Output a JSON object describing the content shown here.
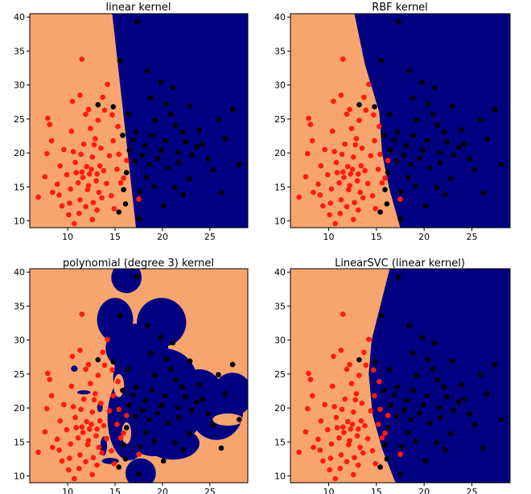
{
  "colors": {
    "region_class0": "#f7a46f",
    "region_class1": "#000080",
    "point_class0": "#ff1a0a",
    "point_class1": "#000000",
    "axes_frame": "#000000",
    "background": "#ffffff"
  },
  "chart_data": [
    {
      "type": "scatter",
      "title": "linear kernel",
      "xlim": [
        6,
        29
      ],
      "ylim": [
        9,
        40.5
      ],
      "xticks": [
        10,
        15,
        20,
        25
      ],
      "yticks": [
        10,
        15,
        20,
        25,
        30,
        35,
        40
      ],
      "grid": false,
      "boundary": [
        [
          14.7,
          40.5
        ],
        [
          17.2,
          9
        ]
      ],
      "series_notes": "two classes: red points left (around x=12, y=18), black points right (around x=19, y=21)"
    },
    {
      "type": "scatter",
      "title": "RBF kernel",
      "xlim": [
        6,
        29
      ],
      "ylim": [
        9,
        40.5
      ],
      "xticks": [
        10,
        15,
        20,
        25
      ],
      "yticks": [
        10,
        15,
        20,
        25,
        30,
        35,
        40
      ],
      "grid": false,
      "boundary": [
        [
          12.7,
          40.5
        ],
        [
          13.8,
          33
        ],
        [
          15.3,
          26
        ],
        [
          15.6,
          20
        ],
        [
          16.3,
          15
        ],
        [
          17.5,
          9
        ]
      ]
    },
    {
      "type": "scatter",
      "title": "polynomial (degree 3) kernel",
      "xlim": [
        6,
        29
      ],
      "ylim": [
        9,
        40.5
      ],
      "xticks": [
        10,
        15,
        20,
        25
      ],
      "yticks": [
        10,
        15,
        20,
        25,
        30,
        35,
        40
      ],
      "grid": false,
      "boundary": null
    },
    {
      "type": "scatter",
      "title": "LinearSVC (linear kernel)",
      "xlim": [
        6,
        29
      ],
      "ylim": [
        9,
        40.5
      ],
      "xticks": [
        10,
        15,
        20,
        25
      ],
      "yticks": [
        10,
        15,
        20,
        25,
        30,
        35,
        40
      ],
      "grid": false,
      "boundary": [
        [
          16.4,
          40.5
        ],
        [
          14.5,
          30
        ],
        [
          14.2,
          25
        ],
        [
          14.6,
          19
        ],
        [
          15.6,
          14
        ],
        [
          17.0,
          9
        ]
      ]
    }
  ],
  "points_class0": [
    [
      12,
      18
    ],
    [
      12.3,
      16.9
    ],
    [
      11.5,
      17.2
    ],
    [
      13,
      15.9
    ],
    [
      10.8,
      18.6
    ],
    [
      12.6,
      19.4
    ],
    [
      13.4,
      18.1
    ],
    [
      11.1,
      15.6
    ],
    [
      9.9,
      16.8
    ],
    [
      12.1,
      14.6
    ],
    [
      13.8,
      17.4
    ],
    [
      10.6,
      20.2
    ],
    [
      14.1,
      15.5
    ],
    [
      11.7,
      21.3
    ],
    [
      12.9,
      22.1
    ],
    [
      9.2,
      18.1
    ],
    [
      8.9,
      15.4
    ],
    [
      13.6,
      13.4
    ],
    [
      11.3,
      13.1
    ],
    [
      10.2,
      12.6
    ],
    [
      14.4,
      19.6
    ],
    [
      12.4,
      23.6
    ],
    [
      13.2,
      24.8
    ],
    [
      11.9,
      25.7
    ],
    [
      10.4,
      23.2
    ],
    [
      8.3,
      21.8
    ],
    [
      9.6,
      20.5
    ],
    [
      14.8,
      21.8
    ],
    [
      15.2,
      17.6
    ],
    [
      14.6,
      13.7
    ],
    [
      13.1,
      11.6
    ],
    [
      11.2,
      11.1
    ],
    [
      10.1,
      10.9
    ],
    [
      12.6,
      10.2
    ],
    [
      9.4,
      12.2
    ],
    [
      8.4,
      14.2
    ],
    [
      7.6,
      16.5
    ],
    [
      7.8,
      19.9
    ],
    [
      7.9,
      25.1
    ],
    [
      8.1,
      24.2
    ],
    [
      10.5,
      27.6
    ],
    [
      11.3,
      28.5
    ],
    [
      12.2,
      26.4
    ],
    [
      13.7,
      28.2
    ],
    [
      14.2,
      30.1
    ],
    [
      11.5,
      33.8
    ],
    [
      15.3,
      23.9
    ],
    [
      14.7,
      25.6
    ],
    [
      13.9,
      26.3
    ],
    [
      15.4,
      19.8
    ],
    [
      16.2,
      18.9
    ],
    [
      17.5,
      13.2
    ],
    [
      15.6,
      15.6
    ],
    [
      13.5,
      20.7
    ],
    [
      12.8,
      21.2
    ],
    [
      11.4,
      19.8
    ],
    [
      10.9,
      17.1
    ],
    [
      12.5,
      17.6
    ],
    [
      11.6,
      16.4
    ],
    [
      13.1,
      16.9
    ],
    [
      12.2,
      15.2
    ],
    [
      10.3,
      14.7
    ],
    [
      9.1,
      13.8
    ],
    [
      6.9,
      13.5
    ],
    [
      10.7,
      9.6
    ],
    [
      14.9,
      11.8
    ],
    [
      15.9,
      16.3
    ],
    [
      12.7,
      12.7
    ],
    [
      11.9,
      12.1
    ],
    [
      13.3,
      14.2
    ]
  ],
  "points_class1": [
    [
      17.3,
      39.3
    ],
    [
      15.5,
      33.6
    ],
    [
      18.4,
      32.1
    ],
    [
      19.8,
      30.4
    ],
    [
      21.1,
      29.6
    ],
    [
      18.8,
      28.1
    ],
    [
      20.4,
      27.2
    ],
    [
      22.9,
      26.9
    ],
    [
      16.4,
      25.7
    ],
    [
      19.2,
      24.8
    ],
    [
      21.4,
      24.1
    ],
    [
      17.2,
      23.1
    ],
    [
      18.9,
      22.6
    ],
    [
      20.3,
      21.8
    ],
    [
      22.4,
      21.6
    ],
    [
      23.6,
      20.9
    ],
    [
      16.5,
      20.4
    ],
    [
      17.9,
      19.7
    ],
    [
      19.5,
      19.2
    ],
    [
      21.7,
      18.6
    ],
    [
      24.8,
      19.1
    ],
    [
      26.6,
      22.1
    ],
    [
      28.1,
      18.3
    ],
    [
      25.3,
      17.5
    ],
    [
      16.2,
      17.1
    ],
    [
      18.3,
      16.4
    ],
    [
      20.6,
      17.8
    ],
    [
      22.8,
      16.2
    ],
    [
      19.1,
      15.1
    ],
    [
      17.6,
      14.3
    ],
    [
      21.3,
      14.9
    ],
    [
      16.1,
      12.5
    ],
    [
      17.5,
      10.3
    ],
    [
      15.4,
      11.3
    ],
    [
      13.2,
      27.1
    ],
    [
      14.8,
      26.8
    ],
    [
      15.8,
      22.6
    ],
    [
      23.9,
      23.4
    ],
    [
      25.9,
      24.9
    ],
    [
      27.4,
      26.4
    ],
    [
      20.9,
      25.7
    ],
    [
      22.1,
      23.1
    ],
    [
      18.2,
      21.1
    ],
    [
      19.9,
      20.4
    ],
    [
      16.9,
      21.9
    ],
    [
      21.6,
      20.1
    ],
    [
      23.1,
      19.7
    ],
    [
      24.2,
      21.3
    ],
    [
      18.6,
      18.3
    ],
    [
      17.1,
      18.8
    ],
    [
      22.2,
      13.9
    ],
    [
      26.2,
      14.1
    ],
    [
      20.1,
      12.2
    ],
    [
      15.9,
      14.6
    ]
  ],
  "poly_blobs_class1": [
    [
      16.2,
      39.2,
      1.6,
      2.3
    ],
    [
      15,
      33,
      1.9,
      3.2
    ],
    [
      19.9,
      32.6,
      2.6,
      3.6
    ],
    [
      17.3,
      28.8,
      3.3,
      3.6
    ],
    [
      20,
      24.3,
      3.6,
      4.5
    ],
    [
      17.2,
      24.6,
      2.4,
      4.2
    ],
    [
      16.5,
      18.6,
      2.3,
      6.3
    ],
    [
      19,
      18.5,
      3.4,
      5.6
    ],
    [
      21.3,
      20.2,
      3.2,
      5.1
    ],
    [
      23.9,
      21.3,
      2.7,
      4.4
    ],
    [
      25.7,
      19.5,
      2.8,
      4.2
    ],
    [
      27.4,
      22,
      2.1,
      3.2
    ],
    [
      21.1,
      14.8,
      2.8,
      2.4
    ],
    [
      17.7,
      10.4,
      1.6,
      2.2
    ]
  ],
  "poly_blobs_class0": [
    [
      15.4,
      23.3,
      0.55,
      1.7
    ],
    [
      16.2,
      16.3,
      0.5,
      1.6
    ],
    [
      26.9,
      18.3,
      1.6,
      0.9
    ]
  ],
  "poly_small_class1": [
    [
      14.5,
      12.2,
      0.9,
      0.45
    ],
    [
      10.7,
      25.8,
      0.35,
      0.45
    ],
    [
      11.7,
      22.3,
      0.7,
      0.3
    ],
    [
      13.4,
      20.1,
      0.3,
      0.7
    ],
    [
      13.8,
      14.4,
      0.35,
      1.4
    ]
  ]
}
